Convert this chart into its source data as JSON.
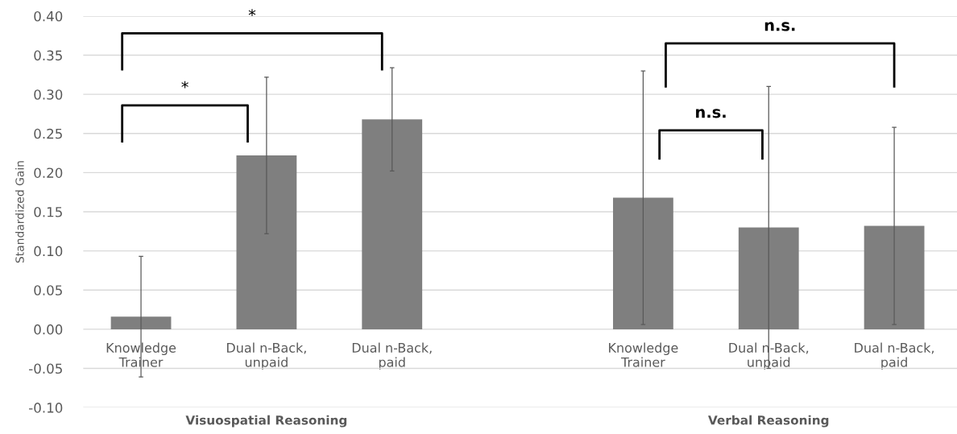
{
  "chart_data": {
    "type": "bar",
    "ylabel": "Standardized Gain",
    "categories": [
      "Knowledge\nTrainer",
      "Dual n-Back,\nunpaid",
      "Dual n-Back,\npaid",
      null,
      "Knowledge\nTrainer",
      "Dual n-Back,\nunpaid",
      "Dual n-Back,\npaid"
    ],
    "values": [
      0.016,
      0.222,
      0.268,
      null,
      0.168,
      0.13,
      0.132
    ],
    "errors": [
      0.077,
      0.1,
      0.066,
      null,
      0.162,
      0.18,
      0.126
    ],
    "color": "#7f7f7f",
    "ylim": [
      -0.1,
      0.4
    ],
    "yticks": [
      {
        "value": -0.1,
        "label": "-0.10"
      },
      {
        "value": -0.05,
        "label": "-0.05"
      },
      {
        "value": 0,
        "label": "0.00"
      },
      {
        "value": 0.05,
        "label": "0.05"
      },
      {
        "value": 0.1,
        "label": "0.10"
      },
      {
        "value": 0.15,
        "label": "0.15"
      },
      {
        "value": 0.2,
        "label": "0.20"
      },
      {
        "value": 0.25,
        "label": "0.25"
      },
      {
        "value": 0.3,
        "label": "0.30"
      },
      {
        "value": 0.35,
        "label": "0.35"
      },
      {
        "value": 0.4,
        "label": "0.40"
      }
    ],
    "grid": "y",
    "annotations": [
      "*",
      "*",
      "n.s.",
      "n.s.",
      "Visuospatial Reasoning",
      "Verbal Reasoning"
    ]
  }
}
